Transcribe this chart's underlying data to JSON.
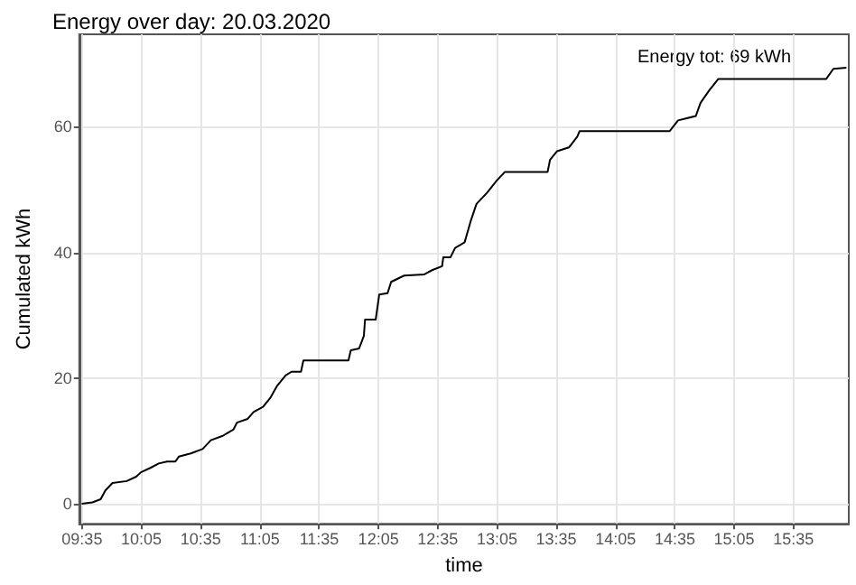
{
  "chart_data": {
    "type": "line",
    "title": "Energy over day: 20.03.2020",
    "xlabel": "time",
    "ylabel": "Cumulated kWh",
    "annotations": [
      "Energy tot: 69 kWh"
    ],
    "x": [
      9.58,
      9.67,
      9.74,
      9.78,
      9.84,
      9.96,
      10.04,
      10.08,
      10.16,
      10.23,
      10.3,
      10.37,
      10.4,
      10.5,
      10.6,
      10.67,
      10.77,
      10.86,
      10.89,
      10.98,
      11.03,
      11.11,
      11.17,
      11.23,
      11.3,
      11.35,
      11.43,
      11.45,
      11.83,
      11.85,
      11.92,
      11.96,
      11.97,
      12.06,
      12.09,
      12.16,
      12.19,
      12.3,
      12.47,
      12.54,
      12.62,
      12.63,
      12.69,
      12.73,
      12.81,
      12.86,
      12.91,
      13.0,
      13.08,
      13.15,
      13.51,
      13.53,
      13.59,
      13.69,
      13.76,
      13.78,
      14.54,
      14.61,
      14.76,
      14.8,
      14.87,
      14.95,
      15.86,
      15.92,
      16.03
    ],
    "series": [
      {
        "color": "#000000",
        "values": [
          0,
          0.2,
          0.7,
          2.1,
          3.3,
          3.6,
          4.3,
          5.0,
          5.7,
          6.4,
          6.7,
          6.7,
          7.5,
          8.0,
          8.7,
          10.1,
          10.8,
          11.8,
          12.9,
          13.5,
          14.6,
          15.4,
          16.8,
          18.8,
          20.4,
          21.0,
          21.0,
          22.8,
          22.8,
          24.4,
          24.7,
          26.7,
          29.3,
          29.3,
          33.3,
          33.5,
          35.3,
          36.3,
          36.5,
          37.2,
          37.8,
          39.2,
          39.2,
          40.7,
          41.6,
          44.9,
          47.7,
          49.5,
          51.4,
          52.8,
          52.8,
          54.7,
          56.1,
          56.7,
          58.4,
          59.3,
          59.3,
          61.0,
          61.7,
          63.8,
          65.7,
          67.6,
          67.6,
          69.2,
          69.4
        ]
      }
    ],
    "xlim": [
      9.56,
      16.05
    ],
    "ylim": [
      -3.2,
      74.7
    ],
    "xticks": [
      {
        "value": 9.5833,
        "label": "09:35"
      },
      {
        "value": 10.0833,
        "label": "10:05"
      },
      {
        "value": 10.5833,
        "label": "10:35"
      },
      {
        "value": 11.0833,
        "label": "11:05"
      },
      {
        "value": 11.5833,
        "label": "11:35"
      },
      {
        "value": 12.0833,
        "label": "12:05"
      },
      {
        "value": 12.5833,
        "label": "12:35"
      },
      {
        "value": 13.0833,
        "label": "13:05"
      },
      {
        "value": 13.5833,
        "label": "13:35"
      },
      {
        "value": 14.0833,
        "label": "14:05"
      },
      {
        "value": 14.5833,
        "label": "14:35"
      },
      {
        "value": 15.0833,
        "label": "15:05"
      },
      {
        "value": 15.5833,
        "label": "15:35"
      }
    ],
    "yticks": [
      0,
      20,
      40,
      60
    ],
    "grid": true,
    "marker": "none",
    "line_style": "solid"
  }
}
